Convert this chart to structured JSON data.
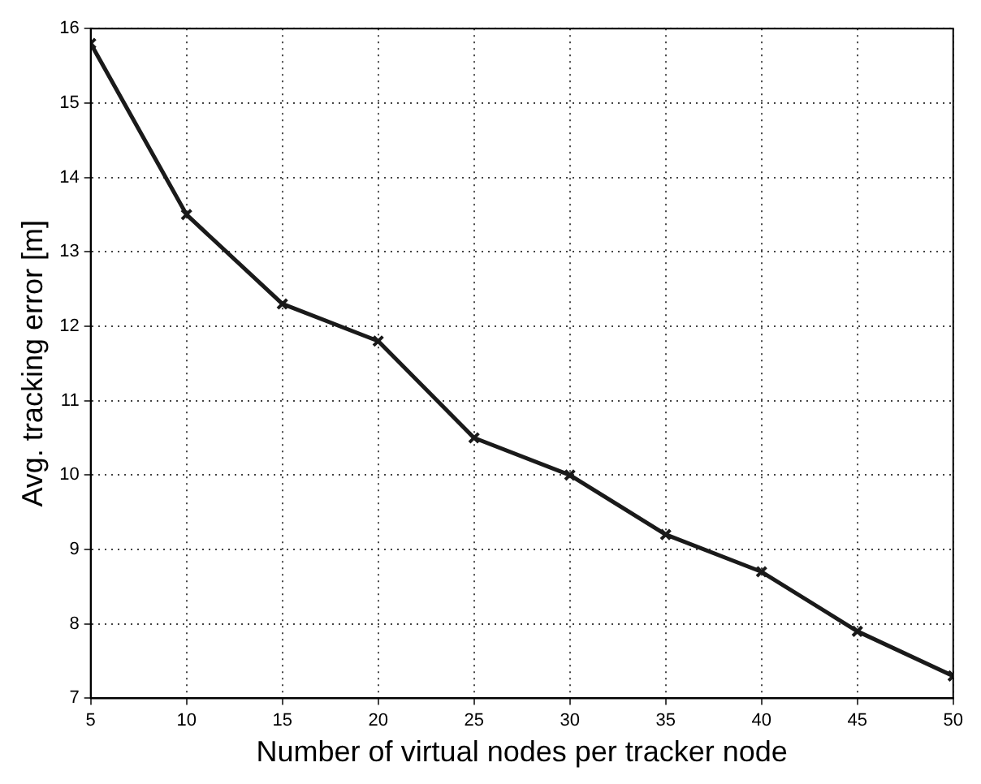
{
  "chart_data": {
    "type": "line",
    "xlabel": "Number of virtual nodes per tracker node",
    "ylabel": "Avg. tracking error [m]",
    "x": [
      5,
      10,
      15,
      20,
      25,
      30,
      35,
      40,
      45,
      50
    ],
    "series": [
      {
        "color": "#1a1a1a",
        "values": [
          15.8,
          13.5,
          12.3,
          11.8,
          10.5,
          10.0,
          9.2,
          8.7,
          7.9,
          7.3
        ]
      }
    ],
    "xlim": [
      5,
      50
    ],
    "xticks": [
      5,
      10,
      15,
      20,
      25,
      30,
      35,
      40,
      45,
      50
    ],
    "ylim": [
      7,
      16
    ],
    "yticks": [
      7,
      8,
      9,
      10,
      11,
      12,
      13,
      14,
      15,
      16
    ],
    "grid": true,
    "marker": "cross",
    "line_style": "solid"
  }
}
